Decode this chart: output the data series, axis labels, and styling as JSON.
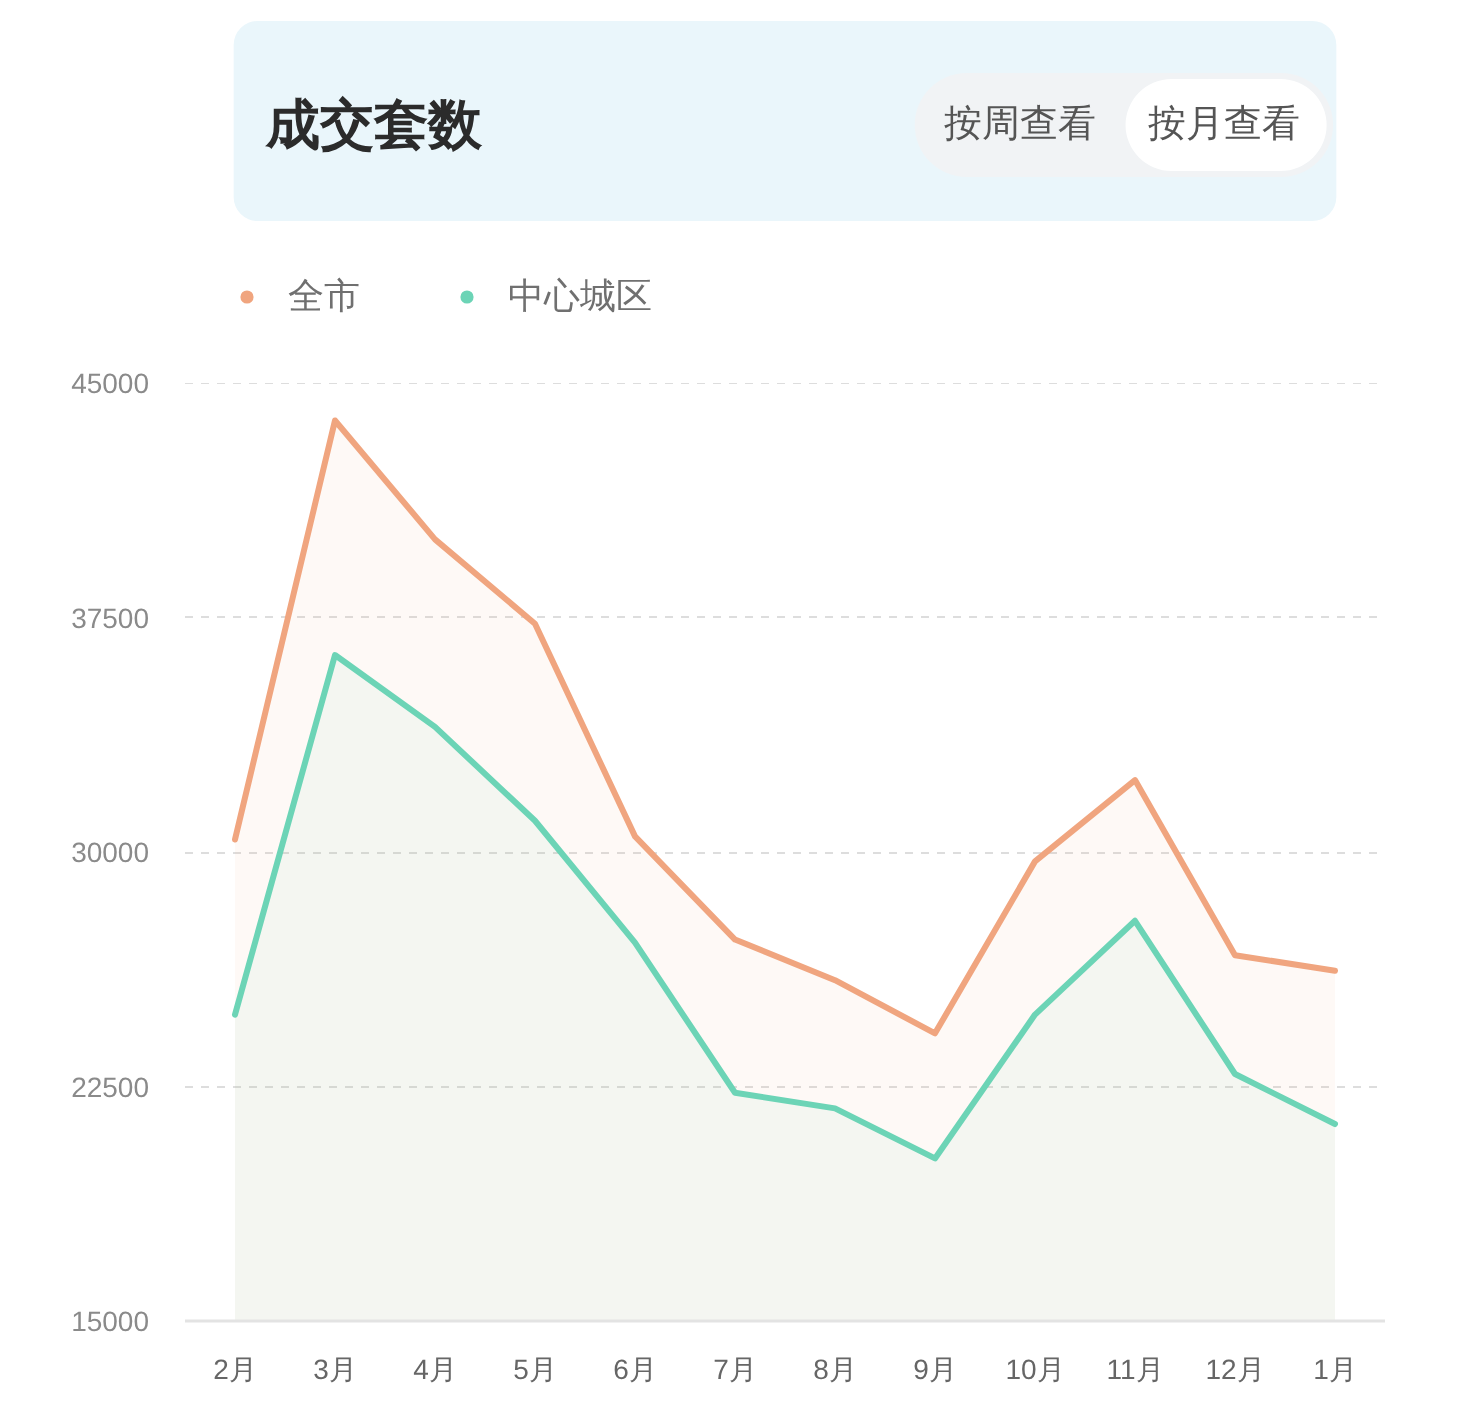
{
  "chart_data": {
    "type": "area",
    "title": "成交套数",
    "annotations": [
      "按周查看",
      "按月查看"
    ],
    "categories": [
      "2月",
      "3月",
      "4月",
      "5月",
      "6月",
      "7月",
      "8月",
      "9月",
      "10月",
      "11月",
      "12月",
      "1月"
    ],
    "series": [
      {
        "name": "全市",
        "color": "#f0a57f",
        "values": [
          30400,
          43800,
          40000,
          37300,
          30500,
          27200,
          25900,
          24200,
          29700,
          32300,
          26700,
          26200
        ]
      },
      {
        "name": "中心城区",
        "color": "#6cd4b6",
        "values": [
          24800,
          36300,
          34000,
          31000,
          27100,
          22300,
          21800,
          20200,
          24800,
          27800,
          22900,
          21300
        ]
      }
    ],
    "ylim": [
      15000,
      45000
    ],
    "yticks": [
      15000,
      22500,
      30000,
      37500,
      45000
    ],
    "grid": "y",
    "legend": "top left"
  }
}
